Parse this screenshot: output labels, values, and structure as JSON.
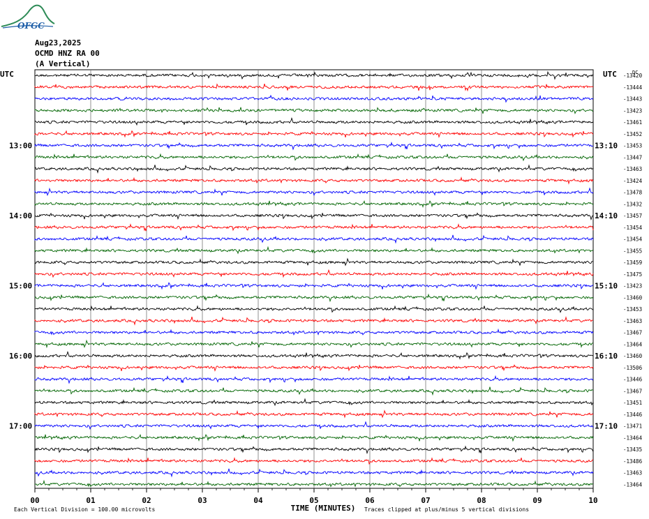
{
  "header": {
    "logo_text": "OFGC",
    "date": "Aug23,2025",
    "station": "OCMD HNZ RA 00",
    "component": "(A Vertical)"
  },
  "chart_data": {
    "type": "line",
    "title": "",
    "xlabel": "TIME (MINUTES)",
    "ylabel": "",
    "xlim": [
      0,
      10
    ],
    "x_ticks": [
      "00",
      "01",
      "02",
      "03",
      "04",
      "05",
      "06",
      "07",
      "08",
      "09",
      "10"
    ],
    "left_axis_label": "UTC",
    "right_axis_label": "UTC",
    "right_top_tag": "DC",
    "left_hour_labels": [
      "13:00",
      "14:00",
      "15:00",
      "16:00",
      "17:00"
    ],
    "right_hour_labels": [
      "13:10",
      "14:10",
      "15:10",
      "16:10",
      "17:10"
    ],
    "hour_label_rows": [
      6,
      12,
      18,
      24,
      30
    ],
    "trace_colors": [
      "#000000",
      "#ff0000",
      "#0000ff",
      "#006400"
    ],
    "trace_offsets": [
      -13420,
      -13444,
      -13443,
      -13423,
      -13461,
      -13452,
      -13453,
      -13447,
      -13463,
      -13424,
      -13478,
      -13432,
      -13457,
      -13454,
      -13454,
      -13455,
      -13459,
      -13475,
      -13423,
      -13460,
      -13453,
      -13463,
      -13467,
      -13464,
      -13460,
      -13506,
      -13446,
      -13467,
      -13451,
      -13446,
      -13471,
      -13464,
      -13435,
      -13486,
      -13463,
      -13464
    ],
    "footnote_left": "Each Vertical Division =  100.00 microvolts",
    "footnote_right": "Traces clipped at plus/minus 5 vertical divisions",
    "grid": true
  }
}
